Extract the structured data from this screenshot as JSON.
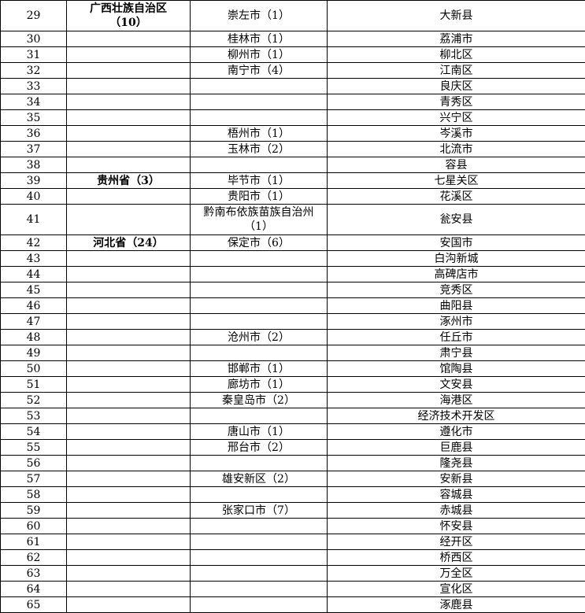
{
  "table": {
    "rows": [
      {
        "no": 29,
        "province": [
          "广西壮族自治区",
          "（10）"
        ],
        "city": "崇左市（1）",
        "county": "大新县"
      },
      {
        "no": 30,
        "city": "桂林市（1）",
        "county": "荔浦市"
      },
      {
        "no": 31,
        "city": "柳州市（1）",
        "county": "柳北区"
      },
      {
        "no": 32,
        "city": "南宁市（4）",
        "county": "江南区"
      },
      {
        "no": 33,
        "county": "良庆区"
      },
      {
        "no": 34,
        "county": "青秀区"
      },
      {
        "no": 35,
        "county": "兴宁区"
      },
      {
        "no": 36,
        "city": "梧州市（1）",
        "county": "岑溪市"
      },
      {
        "no": 37,
        "city": "玉林市（2）",
        "county": "北流市"
      },
      {
        "no": 38,
        "county": "容县"
      },
      {
        "no": 39,
        "province": "贵州省（3）",
        "city": "毕节市（1）",
        "county": "七星关区"
      },
      {
        "no": 40,
        "city": "贵阳市（1）",
        "county": "花溪区"
      },
      {
        "no": 41,
        "city": [
          "黔南布依族苗族自治州",
          "（1）"
        ],
        "county": "瓮安县"
      },
      {
        "no": 42,
        "province": "河北省（24）",
        "city": "保定市（6）",
        "county": "安国市"
      },
      {
        "no": 43,
        "county": "白沟新城"
      },
      {
        "no": 44,
        "county": "高碑店市"
      },
      {
        "no": 45,
        "county": "竞秀区"
      },
      {
        "no": 46,
        "county": "曲阳县"
      },
      {
        "no": 47,
        "county": "涿州市"
      },
      {
        "no": 48,
        "city": "沧州市（2）",
        "county": "任丘市"
      },
      {
        "no": 49,
        "county": "肃宁县"
      },
      {
        "no": 50,
        "city": "邯郸市（1）",
        "county": "馆陶县"
      },
      {
        "no": 51,
        "city": "廊坊市（1）",
        "county": "文安县"
      },
      {
        "no": 52,
        "city": "秦皇岛市（2）",
        "county": "海港区"
      },
      {
        "no": 53,
        "county": "经济技术开发区"
      },
      {
        "no": 54,
        "city": "唐山市（1）",
        "county": "遵化市"
      },
      {
        "no": 55,
        "city": "邢台市（2）",
        "county": "巨鹿县"
      },
      {
        "no": 56,
        "county": "隆尧县"
      },
      {
        "no": 57,
        "city": "雄安新区（2）",
        "county": "安新县"
      },
      {
        "no": 58,
        "county": "容城县"
      },
      {
        "no": 59,
        "city": "张家口市（7）",
        "county": "赤城县"
      },
      {
        "no": 60,
        "county": "怀安县"
      },
      {
        "no": 61,
        "county": "经开区"
      },
      {
        "no": 62,
        "county": "桥西区"
      },
      {
        "no": 63,
        "county": "万全区"
      },
      {
        "no": 64,
        "county": "宣化区"
      },
      {
        "no": 65,
        "county": "涿鹿县"
      }
    ]
  }
}
